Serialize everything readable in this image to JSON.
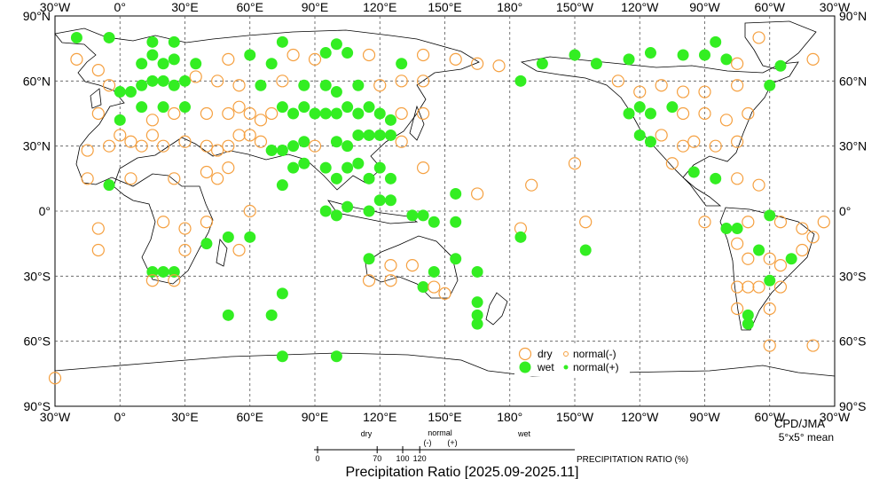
{
  "title": "Precipitation Ratio [2025.09-2025.11]",
  "credit": "CPD/JMA",
  "grid_note": "5°x5° mean",
  "colors": {
    "dry": "#f5a040",
    "wet": "#33ee22",
    "coast": "#000000",
    "grid": "#555555"
  },
  "axes": {
    "x_ticks": [
      "30°W",
      "0°",
      "30°E",
      "60°E",
      "90°E",
      "120°E",
      "150°E",
      "180°",
      "150°W",
      "120°W",
      "90°W",
      "60°W",
      "30°W"
    ],
    "y_ticks": [
      "90°N",
      "60°N",
      "30°N",
      "0°",
      "30°S",
      "60°S",
      "90°S"
    ]
  },
  "legend": {
    "dry": "dry",
    "wet": "wet",
    "normal_minus": "normal(-)",
    "normal_plus": "normal(+)"
  },
  "scale": {
    "dry_label": "dry",
    "normal_label": "normal",
    "wet_label": "wet",
    "minus": "(-)",
    "plus": "(+)",
    "ticks": [
      "0",
      "70",
      "100",
      "120"
    ],
    "tick_values": [
      0,
      70,
      100,
      120
    ],
    "caption": "PRECIPITATION RATIO  (%)"
  },
  "points": [
    {
      "lon": -20,
      "lat": 80,
      "c": "wet"
    },
    {
      "lon": -5,
      "lat": 80,
      "c": "wet"
    },
    {
      "lon": 15,
      "lat": 78,
      "c": "wet"
    },
    {
      "lon": 25,
      "lat": 78,
      "c": "wet"
    },
    {
      "lon": 75,
      "lat": 78,
      "c": "wet"
    },
    {
      "lon": 100,
      "lat": 77,
      "c": "wet"
    },
    {
      "lon": -85,
      "lat": 78,
      "c": "wet"
    },
    {
      "lon": -65,
      "lat": 80,
      "c": "dry"
    },
    {
      "lon": -20,
      "lat": 70,
      "c": "dry"
    },
    {
      "lon": -10,
      "lat": 65,
      "c": "dry"
    },
    {
      "lon": 10,
      "lat": 68,
      "c": "wet"
    },
    {
      "lon": 15,
      "lat": 72,
      "c": "wet"
    },
    {
      "lon": 20,
      "lat": 68,
      "c": "wet"
    },
    {
      "lon": 25,
      "lat": 70,
      "c": "wet"
    },
    {
      "lon": 35,
      "lat": 68,
      "c": "wet"
    },
    {
      "lon": 50,
      "lat": 70,
      "c": "dry"
    },
    {
      "lon": 60,
      "lat": 72,
      "c": "wet"
    },
    {
      "lon": 70,
      "lat": 68,
      "c": "wet"
    },
    {
      "lon": 80,
      "lat": 72,
      "c": "dry"
    },
    {
      "lon": 90,
      "lat": 70,
      "c": "dry"
    },
    {
      "lon": 95,
      "lat": 73,
      "c": "wet"
    },
    {
      "lon": 105,
      "lat": 73,
      "c": "wet"
    },
    {
      "lon": 115,
      "lat": 72,
      "c": "dry"
    },
    {
      "lon": 130,
      "lat": 68,
      "c": "wet"
    },
    {
      "lon": 140,
      "lat": 72,
      "c": "dry"
    },
    {
      "lon": 155,
      "lat": 70,
      "c": "dry"
    },
    {
      "lon": 165,
      "lat": 68,
      "c": "dry"
    },
    {
      "lon": 175,
      "lat": 67,
      "c": "dry"
    },
    {
      "lon": -165,
      "lat": 68,
      "c": "wet"
    },
    {
      "lon": -150,
      "lat": 72,
      "c": "wet"
    },
    {
      "lon": -140,
      "lat": 68,
      "c": "wet"
    },
    {
      "lon": -125,
      "lat": 70,
      "c": "wet"
    },
    {
      "lon": -115,
      "lat": 73,
      "c": "wet"
    },
    {
      "lon": -100,
      "lat": 72,
      "c": "wet"
    },
    {
      "lon": -90,
      "lat": 72,
      "c": "wet"
    },
    {
      "lon": -80,
      "lat": 70,
      "c": "wet"
    },
    {
      "lon": -75,
      "lat": 68,
      "c": "dry"
    },
    {
      "lon": -55,
      "lat": 67,
      "c": "wet"
    },
    {
      "lon": -40,
      "lat": 70,
      "c": "dry"
    },
    {
      "lon": -5,
      "lat": 58,
      "c": "dry"
    },
    {
      "lon": 0,
      "lat": 55,
      "c": "wet"
    },
    {
      "lon": 5,
      "lat": 55,
      "c": "wet"
    },
    {
      "lon": 10,
      "lat": 58,
      "c": "wet"
    },
    {
      "lon": 15,
      "lat": 60,
      "c": "wet"
    },
    {
      "lon": 20,
      "lat": 60,
      "c": "wet"
    },
    {
      "lon": 25,
      "lat": 58,
      "c": "wet"
    },
    {
      "lon": 30,
      "lat": 60,
      "c": "wet"
    },
    {
      "lon": 35,
      "lat": 62,
      "c": "dry"
    },
    {
      "lon": 45,
      "lat": 60,
      "c": "dry"
    },
    {
      "lon": 55,
      "lat": 58,
      "c": "dry"
    },
    {
      "lon": 65,
      "lat": 58,
      "c": "wet"
    },
    {
      "lon": 75,
      "lat": 60,
      "c": "dry"
    },
    {
      "lon": 85,
      "lat": 58,
      "c": "wet"
    },
    {
      "lon": 95,
      "lat": 58,
      "c": "wet"
    },
    {
      "lon": 100,
      "lat": 55,
      "c": "wet"
    },
    {
      "lon": 110,
      "lat": 58,
      "c": "wet"
    },
    {
      "lon": 120,
      "lat": 58,
      "c": "dry"
    },
    {
      "lon": 130,
      "lat": 60,
      "c": "dry"
    },
    {
      "lon": 140,
      "lat": 60,
      "c": "dry"
    },
    {
      "lon": -175,
      "lat": 60,
      "c": "wet"
    },
    {
      "lon": -130,
      "lat": 60,
      "c": "dry"
    },
    {
      "lon": -120,
      "lat": 55,
      "c": "dry"
    },
    {
      "lon": -110,
      "lat": 58,
      "c": "dry"
    },
    {
      "lon": -100,
      "lat": 55,
      "c": "dry"
    },
    {
      "lon": -90,
      "lat": 55,
      "c": "dry"
    },
    {
      "lon": -75,
      "lat": 58,
      "c": "dry"
    },
    {
      "lon": -60,
      "lat": 58,
      "c": "wet"
    },
    {
      "lon": -10,
      "lat": 45,
      "c": "dry"
    },
    {
      "lon": 0,
      "lat": 42,
      "c": "wet"
    },
    {
      "lon": 10,
      "lat": 48,
      "c": "wet"
    },
    {
      "lon": 15,
      "lat": 42,
      "c": "dry"
    },
    {
      "lon": 20,
      "lat": 48,
      "c": "wet"
    },
    {
      "lon": 25,
      "lat": 45,
      "c": "dry"
    },
    {
      "lon": 30,
      "lat": 48,
      "c": "wet"
    },
    {
      "lon": 40,
      "lat": 45,
      "c": "dry"
    },
    {
      "lon": 50,
      "lat": 45,
      "c": "dry"
    },
    {
      "lon": 55,
      "lat": 48,
      "c": "dry"
    },
    {
      "lon": 60,
      "lat": 45,
      "c": "dry"
    },
    {
      "lon": 65,
      "lat": 42,
      "c": "dry"
    },
    {
      "lon": 70,
      "lat": 45,
      "c": "dry"
    },
    {
      "lon": 75,
      "lat": 48,
      "c": "wet"
    },
    {
      "lon": 80,
      "lat": 45,
      "c": "wet"
    },
    {
      "lon": 85,
      "lat": 48,
      "c": "wet"
    },
    {
      "lon": 90,
      "lat": 45,
      "c": "wet"
    },
    {
      "lon": 95,
      "lat": 45,
      "c": "wet"
    },
    {
      "lon": 100,
      "lat": 45,
      "c": "wet"
    },
    {
      "lon": 105,
      "lat": 48,
      "c": "wet"
    },
    {
      "lon": 110,
      "lat": 45,
      "c": "wet"
    },
    {
      "lon": 115,
      "lat": 48,
      "c": "wet"
    },
    {
      "lon": 120,
      "lat": 45,
      "c": "wet"
    },
    {
      "lon": 125,
      "lat": 42,
      "c": "wet"
    },
    {
      "lon": 130,
      "lat": 45,
      "c": "dry"
    },
    {
      "lon": 140,
      "lat": 45,
      "c": "dry"
    },
    {
      "lon": -125,
      "lat": 45,
      "c": "wet"
    },
    {
      "lon": -120,
      "lat": 48,
      "c": "wet"
    },
    {
      "lon": -115,
      "lat": 45,
      "c": "wet"
    },
    {
      "lon": -105,
      "lat": 48,
      "c": "wet"
    },
    {
      "lon": -100,
      "lat": 45,
      "c": "dry"
    },
    {
      "lon": -90,
      "lat": 45,
      "c": "dry"
    },
    {
      "lon": -80,
      "lat": 42,
      "c": "dry"
    },
    {
      "lon": -70,
      "lat": 45,
      "c": "dry"
    },
    {
      "lon": -15,
      "lat": 28,
      "c": "dry"
    },
    {
      "lon": -5,
      "lat": 30,
      "c": "dry"
    },
    {
      "lon": 0,
      "lat": 35,
      "c": "dry"
    },
    {
      "lon": 5,
      "lat": 32,
      "c": "dry"
    },
    {
      "lon": 10,
      "lat": 30,
      "c": "dry"
    },
    {
      "lon": 15,
      "lat": 35,
      "c": "dry"
    },
    {
      "lon": 20,
      "lat": 30,
      "c": "dry"
    },
    {
      "lon": 30,
      "lat": 32,
      "c": "dry"
    },
    {
      "lon": 40,
      "lat": 30,
      "c": "dry"
    },
    {
      "lon": 45,
      "lat": 28,
      "c": "dry"
    },
    {
      "lon": 50,
      "lat": 30,
      "c": "dry"
    },
    {
      "lon": 55,
      "lat": 35,
      "c": "dry"
    },
    {
      "lon": 60,
      "lat": 35,
      "c": "dry"
    },
    {
      "lon": 65,
      "lat": 32,
      "c": "dry"
    },
    {
      "lon": 70,
      "lat": 28,
      "c": "wet"
    },
    {
      "lon": 75,
      "lat": 28,
      "c": "wet"
    },
    {
      "lon": 80,
      "lat": 30,
      "c": "wet"
    },
    {
      "lon": 85,
      "lat": 32,
      "c": "wet"
    },
    {
      "lon": 90,
      "lat": 30,
      "c": "dry"
    },
    {
      "lon": 100,
      "lat": 32,
      "c": "wet"
    },
    {
      "lon": 105,
      "lat": 30,
      "c": "wet"
    },
    {
      "lon": 110,
      "lat": 35,
      "c": "wet"
    },
    {
      "lon": 115,
      "lat": 35,
      "c": "wet"
    },
    {
      "lon": 120,
      "lat": 35,
      "c": "wet"
    },
    {
      "lon": 125,
      "lat": 35,
      "c": "wet"
    },
    {
      "lon": 130,
      "lat": 32,
      "c": "dry"
    },
    {
      "lon": -120,
      "lat": 35,
      "c": "wet"
    },
    {
      "lon": -115,
      "lat": 32,
      "c": "wet"
    },
    {
      "lon": -110,
      "lat": 35,
      "c": "dry"
    },
    {
      "lon": -100,
      "lat": 30,
      "c": "dry"
    },
    {
      "lon": -95,
      "lat": 32,
      "c": "dry"
    },
    {
      "lon": -85,
      "lat": 30,
      "c": "dry"
    },
    {
      "lon": -75,
      "lat": 32,
      "c": "dry"
    },
    {
      "lon": -15,
      "lat": 15,
      "c": "dry"
    },
    {
      "lon": -5,
      "lat": 12,
      "c": "wet"
    },
    {
      "lon": 5,
      "lat": 15,
      "c": "dry"
    },
    {
      "lon": 25,
      "lat": 15,
      "c": "dry"
    },
    {
      "lon": 40,
      "lat": 18,
      "c": "dry"
    },
    {
      "lon": 45,
      "lat": 15,
      "c": "dry"
    },
    {
      "lon": 50,
      "lat": 20,
      "c": "dry"
    },
    {
      "lon": 75,
      "lat": 12,
      "c": "wet"
    },
    {
      "lon": 80,
      "lat": 20,
      "c": "wet"
    },
    {
      "lon": 85,
      "lat": 22,
      "c": "wet"
    },
    {
      "lon": 95,
      "lat": 20,
      "c": "wet"
    },
    {
      "lon": 100,
      "lat": 15,
      "c": "wet"
    },
    {
      "lon": 105,
      "lat": 20,
      "c": "wet"
    },
    {
      "lon": 110,
      "lat": 22,
      "c": "wet"
    },
    {
      "lon": 115,
      "lat": 15,
      "c": "wet"
    },
    {
      "lon": 120,
      "lat": 20,
      "c": "wet"
    },
    {
      "lon": 125,
      "lat": 15,
      "c": "wet"
    },
    {
      "lon": 140,
      "lat": 20,
      "c": "dry"
    },
    {
      "lon": -170,
      "lat": 12,
      "c": "dry"
    },
    {
      "lon": -150,
      "lat": 22,
      "c": "dry"
    },
    {
      "lon": -105,
      "lat": 22,
      "c": "dry"
    },
    {
      "lon": -95,
      "lat": 18,
      "c": "wet"
    },
    {
      "lon": -85,
      "lat": 15,
      "c": "wet"
    },
    {
      "lon": -75,
      "lat": 15,
      "c": "dry"
    },
    {
      "lon": -65,
      "lat": 12,
      "c": "dry"
    },
    {
      "lon": -10,
      "lat": -8,
      "c": "dry"
    },
    {
      "lon": 20,
      "lat": -5,
      "c": "dry"
    },
    {
      "lon": 30,
      "lat": -8,
      "c": "dry"
    },
    {
      "lon": 40,
      "lat": -5,
      "c": "dry"
    },
    {
      "lon": 60,
      "lat": 0,
      "c": "dry"
    },
    {
      "lon": 95,
      "lat": 0,
      "c": "wet"
    },
    {
      "lon": 100,
      "lat": -2,
      "c": "wet"
    },
    {
      "lon": 105,
      "lat": 2,
      "c": "wet"
    },
    {
      "lon": 115,
      "lat": 0,
      "c": "wet"
    },
    {
      "lon": 120,
      "lat": 5,
      "c": "wet"
    },
    {
      "lon": 125,
      "lat": 5,
      "c": "wet"
    },
    {
      "lon": 135,
      "lat": -2,
      "c": "wet"
    },
    {
      "lon": 140,
      "lat": -2,
      "c": "wet"
    },
    {
      "lon": 145,
      "lat": -5,
      "c": "wet"
    },
    {
      "lon": 155,
      "lat": -5,
      "c": "wet"
    },
    {
      "lon": 155,
      "lat": 8,
      "c": "wet"
    },
    {
      "lon": 165,
      "lat": 8,
      "c": "dry"
    },
    {
      "lon": -175,
      "lat": -8,
      "c": "dry"
    },
    {
      "lon": -145,
      "lat": -5,
      "c": "dry"
    },
    {
      "lon": -90,
      "lat": -5,
      "c": "dry"
    },
    {
      "lon": -80,
      "lat": -8,
      "c": "wet"
    },
    {
      "lon": -75,
      "lat": -8,
      "c": "wet"
    },
    {
      "lon": -70,
      "lat": -5,
      "c": "dry"
    },
    {
      "lon": -60,
      "lat": -2,
      "c": "wet"
    },
    {
      "lon": -55,
      "lat": -5,
      "c": "dry"
    },
    {
      "lon": -45,
      "lat": -8,
      "c": "dry"
    },
    {
      "lon": -35,
      "lat": -5,
      "c": "dry"
    },
    {
      "lon": -10,
      "lat": -18,
      "c": "dry"
    },
    {
      "lon": 15,
      "lat": -28,
      "c": "wet"
    },
    {
      "lon": 20,
      "lat": -28,
      "c": "wet"
    },
    {
      "lon": 25,
      "lat": -28,
      "c": "wet"
    },
    {
      "lon": 30,
      "lat": -18,
      "c": "dry"
    },
    {
      "lon": 40,
      "lat": -15,
      "c": "wet"
    },
    {
      "lon": 50,
      "lat": -12,
      "c": "wet"
    },
    {
      "lon": 55,
      "lat": -18,
      "c": "dry"
    },
    {
      "lon": 60,
      "lat": -12,
      "c": "wet"
    },
    {
      "lon": 115,
      "lat": -22,
      "c": "wet"
    },
    {
      "lon": 125,
      "lat": -25,
      "c": "dry"
    },
    {
      "lon": 135,
      "lat": -25,
      "c": "dry"
    },
    {
      "lon": 145,
      "lat": -28,
      "c": "wet"
    },
    {
      "lon": 155,
      "lat": -22,
      "c": "wet"
    },
    {
      "lon": 165,
      "lat": -28,
      "c": "wet"
    },
    {
      "lon": -175,
      "lat": -12,
      "c": "wet"
    },
    {
      "lon": -145,
      "lat": -18,
      "c": "wet"
    },
    {
      "lon": -75,
      "lat": -15,
      "c": "dry"
    },
    {
      "lon": -70,
      "lat": -22,
      "c": "dry"
    },
    {
      "lon": -65,
      "lat": -18,
      "c": "wet"
    },
    {
      "lon": -60,
      "lat": -22,
      "c": "dry"
    },
    {
      "lon": -55,
      "lat": -25,
      "c": "dry"
    },
    {
      "lon": -50,
      "lat": -22,
      "c": "wet"
    },
    {
      "lon": -45,
      "lat": -18,
      "c": "dry"
    },
    {
      "lon": -40,
      "lat": -12,
      "c": "dry"
    },
    {
      "lon": 15,
      "lat": -32,
      "c": "dry"
    },
    {
      "lon": 25,
      "lat": -32,
      "c": "dry"
    },
    {
      "lon": 75,
      "lat": -38,
      "c": "wet"
    },
    {
      "lon": 115,
      "lat": -32,
      "c": "dry"
    },
    {
      "lon": 125,
      "lat": -32,
      "c": "dry"
    },
    {
      "lon": 140,
      "lat": -35,
      "c": "wet"
    },
    {
      "lon": 145,
      "lat": -35,
      "c": "dry"
    },
    {
      "lon": 150,
      "lat": -38,
      "c": "dry"
    },
    {
      "lon": -75,
      "lat": -35,
      "c": "dry"
    },
    {
      "lon": -70,
      "lat": -35,
      "c": "dry"
    },
    {
      "lon": -65,
      "lat": -35,
      "c": "dry"
    },
    {
      "lon": -60,
      "lat": -32,
      "c": "wet"
    },
    {
      "lon": -55,
      "lat": -35,
      "c": "dry"
    },
    {
      "lon": 50,
      "lat": -48,
      "c": "wet"
    },
    {
      "lon": 70,
      "lat": -48,
      "c": "wet"
    },
    {
      "lon": 165,
      "lat": -42,
      "c": "wet"
    },
    {
      "lon": 165,
      "lat": -48,
      "c": "wet"
    },
    {
      "lon": 165,
      "lat": -52,
      "c": "wet"
    },
    {
      "lon": -75,
      "lat": -45,
      "c": "dry"
    },
    {
      "lon": -70,
      "lat": -48,
      "c": "wet"
    },
    {
      "lon": -70,
      "lat": -52,
      "c": "wet"
    },
    {
      "lon": -60,
      "lat": -45,
      "c": "dry"
    },
    {
      "lon": 75,
      "lat": -67,
      "c": "wet"
    },
    {
      "lon": 100,
      "lat": -67,
      "c": "wet"
    },
    {
      "lon": -60,
      "lat": -62,
      "c": "dry"
    },
    {
      "lon": -40,
      "lat": -62,
      "c": "dry"
    },
    {
      "lon": -30,
      "lat": -77,
      "c": "dry"
    }
  ]
}
